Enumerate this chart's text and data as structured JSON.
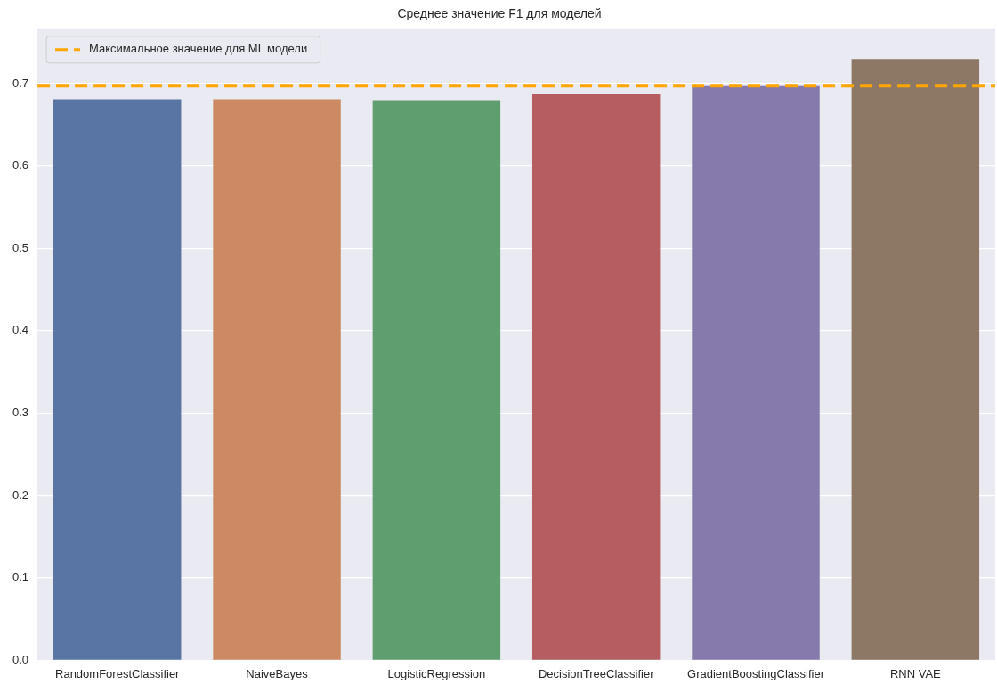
{
  "chart_data": {
    "type": "bar",
    "title": "Среднее значение F1 для моделей",
    "categories": [
      "RandomForestClassifier",
      "NaiveBayes",
      "LogisticRegression",
      "DecisionTreeClassifier",
      "GradientBoostingClassifier",
      "RNN VAE"
    ],
    "values": [
      0.681,
      0.681,
      0.68,
      0.687,
      0.697,
      0.73
    ],
    "colors": [
      "#5975a4",
      "#cc8963",
      "#5f9e6e",
      "#b55d60",
      "#857aab",
      "#8d7866"
    ],
    "ylim": [
      0,
      0.766
    ],
    "yticks": [
      {
        "value": 0,
        "label": "0.0"
      },
      0.1,
      0.2,
      0.3,
      0.4,
      0.5,
      0.6,
      0.7
    ],
    "grid": "y",
    "legend": "top left",
    "ref_lines": [
      {
        "axis": "y",
        "value": 0.697,
        "label": "Максимальное значение для ML модели",
        "color": "#ffa500",
        "line_style": "dashed"
      }
    ]
  }
}
